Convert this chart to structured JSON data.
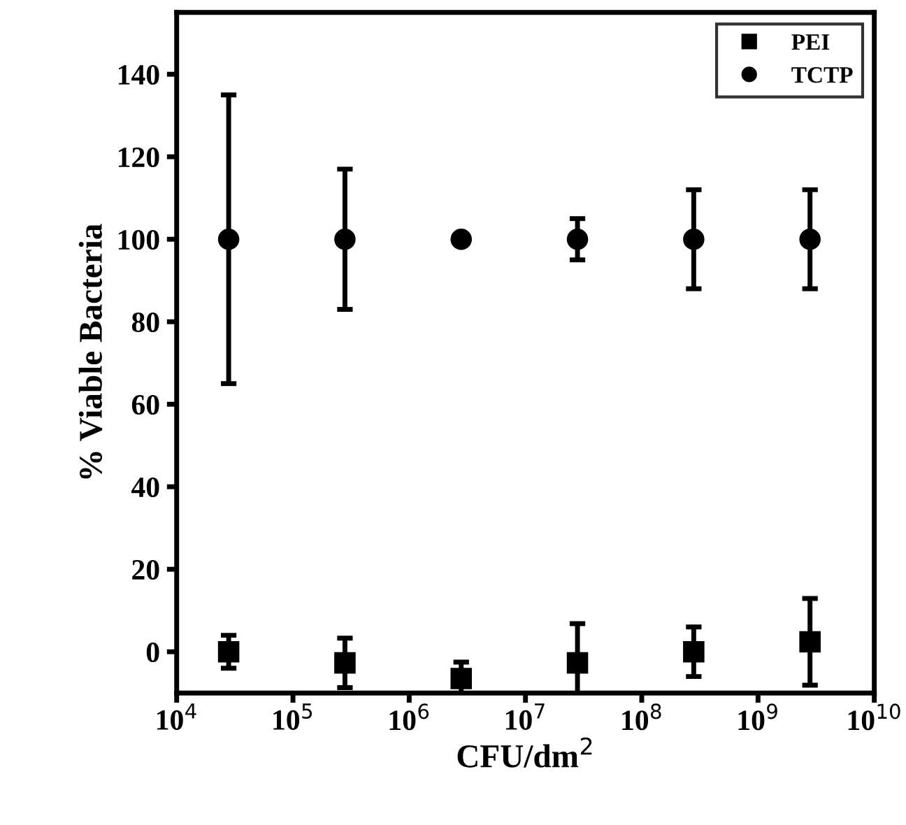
{
  "chart_data": {
    "type": "scatter",
    "xlabel": "CFU/dm$^{2}$",
    "ylabel": "% Viable Bacteria",
    "log": "x",
    "x": [
      28000,
      280000,
      2800000,
      28000000,
      280000000,
      2800000000
    ],
    "series": [
      {
        "name": "PEI",
        "color": "#000000",
        "marker": "square",
        "values": [
          0,
          -2.7,
          -6.5,
          -2.7,
          0,
          2.4
        ],
        "errors": [
          4,
          6,
          4,
          9.5,
          6,
          10.5
        ]
      },
      {
        "name": "TCTP",
        "color": "#000000",
        "marker": "circle",
        "values": [
          100,
          100,
          100,
          100,
          100,
          100
        ],
        "errors": [
          35,
          17,
          null,
          5,
          12,
          12
        ]
      }
    ],
    "xlim": [
      10000,
      10000000000
    ],
    "xticks": [
      {
        "value": 10000,
        "label": "10$^{4}$"
      },
      {
        "value": 100000,
        "label": "10$^{5}$"
      },
      {
        "value": 1000000,
        "label": "10$^{6}$"
      },
      {
        "value": 10000000,
        "label": "10$^{7}$"
      },
      {
        "value": 100000000,
        "label": "10$^{8}$"
      },
      {
        "value": 1000000000,
        "label": "10$^{9}$"
      },
      {
        "value": 10000000000,
        "label": "10$^{10}$"
      }
    ],
    "ylim": [
      -10,
      155
    ],
    "yticks": [
      0,
      20,
      40,
      60,
      80,
      100,
      120,
      140
    ],
    "legend": "top right",
    "grid": false
  }
}
